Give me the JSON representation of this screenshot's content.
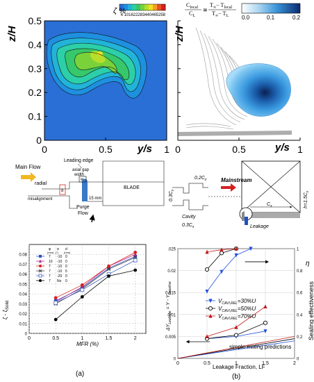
{
  "top_left": {
    "colorbar_label": "ζ %",
    "colorbar_ticks": [
      "4",
      "10",
      "16",
      "22",
      "28",
      "34",
      "40",
      "46",
      "52",
      "58"
    ],
    "colorbar_colors": [
      "#2a6fd6",
      "#1e90e0",
      "#22b4d8",
      "#2ccfa8",
      "#36c86a",
      "#7ad23a",
      "#b6de2a",
      "#f0e020",
      "#f5a023",
      "#e8502a",
      "#d42020"
    ],
    "ylabel": "z/H",
    "yticks": [
      "0",
      "0.1",
      "0.2",
      "0.3",
      "0.4",
      "0.5"
    ],
    "xlabel": "y/s",
    "xticks": [
      "0",
      "0.5",
      "1"
    ]
  },
  "top_right": {
    "formula_left_num": "C",
    "formula_left_num_sub": "local",
    "formula_left_den": "C",
    "formula_left_den_sub": "L",
    "formula_eq": "≅",
    "formula_right_num": "T",
    "formula_right_num_sub1": "∞",
    "formula_right_num_minus": "− T",
    "formula_right_num_sub2": "local",
    "formula_right_den": "T",
    "formula_right_den_sub1": "∞",
    "formula_right_den_minus": "− T",
    "formula_right_den_sub2": "L",
    "colorbar_ticks": [
      "0.0",
      "0.1",
      "0.2"
    ],
    "ylabel": "z/H",
    "xlabel": "y/s",
    "xticks": [
      "0",
      "0.5",
      "1"
    ]
  },
  "schematic_left": {
    "main_flow": "Main Flow",
    "leading_edge": "Leading edge",
    "axial_gap": "axial gap",
    "width": "width",
    "blade": "BLADE",
    "radial": "radial",
    "misalignment": "misalignment",
    "d": "d",
    "w": "w",
    "dist": "15 mm",
    "purge": "Purge",
    "flow": "Flow"
  },
  "schematic_right": {
    "dim_02": "0.2C",
    "dim_03": "0.3C",
    "dim_03b": "0.3C",
    "sub_x": "x",
    "cavity": "Cavity",
    "mainstream": "Mainstream",
    "h_label": "h=1.5C",
    "cx": "C",
    "leakage": "Leakage"
  },
  "chart_a": {
    "caption": "(a)",
    "xlabel": "MFR (%)",
    "ylabel": "ζ - ζ",
    "ylabel_sub": "Solid",
    "legend_headers": [
      "φ",
      "α",
      "d"
    ],
    "legend_units": [
      "(mm)",
      "(°)",
      "(mm)"
    ]
  },
  "chart_b": {
    "caption": "(b)",
    "xlabel": "Leakage Fraction, LF",
    "ylabel": "ΔY",
    "ylabel_sub": "Leakage",
    "ylabel_rest": " = Y - Y",
    "ylabel_sub2": "Baseline",
    "y2label": "Sealing effectiveness",
    "eta": "η",
    "legend_prefix": "V",
    "legend_sub": "CAVI,REL",
    "legend_entries": [
      "=30%U",
      "=50%U",
      "=70%U"
    ],
    "annotation": "simple mixing predictions"
  },
  "chart_data": [
    {
      "type": "line",
      "title": "",
      "xlabel": "MFR (%)",
      "ylabel": "ζ - ζSolid",
      "x": [
        0.5,
        1,
        1.5,
        2
      ],
      "xticks": [
        "0",
        "0.5",
        "1",
        "1.5",
        "2"
      ],
      "yticks": [
        "0",
        "0.01",
        "0.02",
        "0.03",
        "0.04",
        "0.05",
        "0.06",
        "0.07",
        "0.08"
      ],
      "xlim": [
        0,
        2.2
      ],
      "ylim": [
        0,
        0.09
      ],
      "grid": "dashed",
      "legend_position": "top-left",
      "series": [
        {
          "name": "7 -10 0",
          "phi": "7",
          "alpha": "-10",
          "d": "0",
          "color": "#3050c8",
          "marker": "square",
          "values": [
            0.033,
            0.046,
            0.066,
            0.078
          ]
        },
        {
          "name": "10 -10 0",
          "phi": "10",
          "alpha": "-10",
          "d": "0",
          "color": "#b02a8c",
          "marker": "triangle",
          "values": [
            0.032,
            0.047,
            0.068,
            0.08
          ]
        },
        {
          "name": "7 -10 0",
          "phi": "7",
          "alpha": "-10",
          "d": "0",
          "color": "#d62020",
          "marker": "circle",
          "values": [
            0.036,
            0.049,
            0.068,
            0.082
          ]
        },
        {
          "name": "7 -10 5",
          "phi": "7",
          "alpha": "-10",
          "d": "5",
          "color": "#404040",
          "marker": "x",
          "values": [
            0.03,
            0.045,
            0.065,
            0.077
          ]
        },
        {
          "name": "7 -20 0",
          "phi": "7",
          "alpha": "-20",
          "d": "0",
          "color": "#4060c0",
          "marker": "square-open",
          "values": [
            0.031,
            0.044,
            0.06,
            0.074
          ]
        },
        {
          "name": "7 No 0",
          "phi": "7",
          "alpha": "No",
          "d": "0",
          "color": "#000000",
          "marker": "circle",
          "values": [
            0.014,
            0.037,
            0.058,
            0.064
          ]
        }
      ]
    },
    {
      "type": "line",
      "title": "",
      "xlabel": "Leakage Fraction, LF",
      "ylabel": "ΔYLeakage = Y - YBaseline",
      "y2label": "Sealing effectiveness η",
      "xticks": [
        "0",
        "0.5",
        "1",
        "1.5",
        "2"
      ],
      "yticks": [
        "0",
        "0.005",
        "0.01",
        "0.015",
        "0.02",
        ".025"
      ],
      "y2ticks": [
        "0",
        "0.2",
        "0.4",
        "0.6",
        "0.8",
        "1"
      ],
      "xlim": [
        0,
        2
      ],
      "ylim": [
        0,
        0.025
      ],
      "y2lim": [
        0,
        1
      ],
      "grid": "on",
      "legend_position": "center-right",
      "loss_series": [
        {
          "name": "30%U",
          "color": "#2050e0",
          "marker": "triangle-down",
          "x": [
            0.5,
            1.0,
            1.5
          ],
          "values": [
            0.0045,
            0.005,
            0.0062
          ]
        },
        {
          "name": "50%U",
          "color": "#000000",
          "marker": "circle-open",
          "x": [
            0.5,
            1.0,
            1.5
          ],
          "values": [
            0.0045,
            0.0053,
            0.0081
          ]
        },
        {
          "name": "70%U",
          "color": "#c01818",
          "marker": "triangle",
          "x": [
            0.5,
            1.0,
            1.5
          ],
          "values": [
            0.005,
            0.0071,
            0.0118
          ]
        }
      ],
      "eta_series": [
        {
          "name": "30%U",
          "color": "#2050e0",
          "marker": "triangle-down",
          "x": [
            0.5,
            0.75,
            1.0,
            1.25
          ],
          "values": [
            0.61,
            0.79,
            0.94,
            1.0
          ]
        },
        {
          "name": "50%U",
          "color": "#000000",
          "marker": "circle-open",
          "x": [
            0.5,
            0.75,
            1.0
          ],
          "values": [
            0.81,
            0.96,
            1.0
          ]
        },
        {
          "name": "70%U",
          "color": "#c01818",
          "marker": "triangle",
          "x": [
            0.5,
            0.75,
            1.0
          ],
          "values": [
            0.97,
            0.99,
            1.0
          ]
        }
      ],
      "mixing_lines": [
        {
          "color": "#2050e0",
          "x": [
            0,
            2
          ],
          "values": [
            0,
            0.004
          ]
        },
        {
          "color": "#000000",
          "x": [
            0,
            2
          ],
          "values": [
            0,
            0.0045
          ]
        },
        {
          "color": "#c01818",
          "x": [
            0,
            2
          ],
          "values": [
            0,
            0.005
          ]
        }
      ]
    }
  ]
}
